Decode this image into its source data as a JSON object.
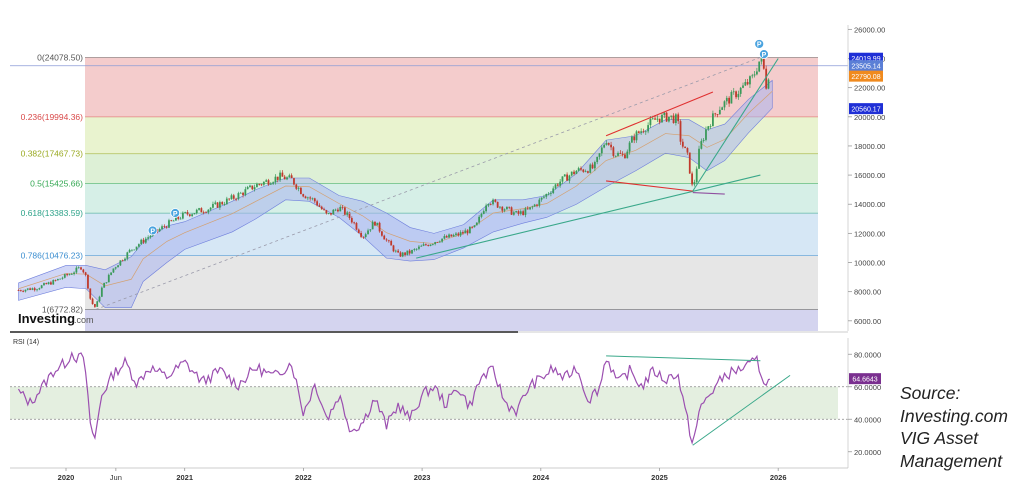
{
  "chart_data": [
    {
      "type": "candlestick",
      "title": "",
      "ylim": [
        5300,
        26300
      ],
      "price_ticks": [
        "26000.00",
        "24000.00",
        "22000.00",
        "20000.00",
        "18000.00",
        "16000.00",
        "14000.00",
        "12000.00",
        "10000.00",
        "8000.00",
        "6000.00"
      ],
      "x_labels": [
        "2020",
        "Jun",
        "2021",
        "2022",
        "2023",
        "2024",
        "2025",
        "2026"
      ],
      "price_path": [
        {
          "x": 2019.6,
          "y": 8100
        },
        {
          "x": 2019.75,
          "y": 8250
        },
        {
          "x": 2019.9,
          "y": 8700
        },
        {
          "x": 2020.05,
          "y": 9300
        },
        {
          "x": 2020.13,
          "y": 9700
        },
        {
          "x": 2020.17,
          "y": 9000
        },
        {
          "x": 2020.21,
          "y": 7300
        },
        {
          "x": 2020.25,
          "y": 6900
        },
        {
          "x": 2020.3,
          "y": 8200
        },
        {
          "x": 2020.4,
          "y": 9600
        },
        {
          "x": 2020.55,
          "y": 10900
        },
        {
          "x": 2020.7,
          "y": 11800
        },
        {
          "x": 2020.85,
          "y": 12600
        },
        {
          "x": 2021.0,
          "y": 13300
        },
        {
          "x": 2021.2,
          "y": 13700
        },
        {
          "x": 2021.4,
          "y": 14400
        },
        {
          "x": 2021.6,
          "y": 15300
        },
        {
          "x": 2021.8,
          "y": 15900
        },
        {
          "x": 2021.9,
          "y": 15700
        },
        {
          "x": 2022.0,
          "y": 14700
        },
        {
          "x": 2022.1,
          "y": 14200
        },
        {
          "x": 2022.2,
          "y": 13200
        },
        {
          "x": 2022.3,
          "y": 13800
        },
        {
          "x": 2022.4,
          "y": 13000
        },
        {
          "x": 2022.5,
          "y": 11800
        },
        {
          "x": 2022.6,
          "y": 12800
        },
        {
          "x": 2022.7,
          "y": 11500
        },
        {
          "x": 2022.8,
          "y": 10500
        },
        {
          "x": 2022.9,
          "y": 10700
        },
        {
          "x": 2023.0,
          "y": 11100
        },
        {
          "x": 2023.15,
          "y": 11600
        },
        {
          "x": 2023.3,
          "y": 11900
        },
        {
          "x": 2023.45,
          "y": 12400
        },
        {
          "x": 2023.55,
          "y": 14300
        },
        {
          "x": 2023.65,
          "y": 13900
        },
        {
          "x": 2023.8,
          "y": 13300
        },
        {
          "x": 2023.9,
          "y": 13600
        },
        {
          "x": 2024.0,
          "y": 14300
        },
        {
          "x": 2024.15,
          "y": 15500
        },
        {
          "x": 2024.3,
          "y": 16300
        },
        {
          "x": 2024.45,
          "y": 16500
        },
        {
          "x": 2024.55,
          "y": 18500
        },
        {
          "x": 2024.62,
          "y": 17500
        },
        {
          "x": 2024.7,
          "y": 17300
        },
        {
          "x": 2024.78,
          "y": 18600
        },
        {
          "x": 2024.88,
          "y": 19300
        },
        {
          "x": 2024.98,
          "y": 19900
        },
        {
          "x": 2025.08,
          "y": 20000
        },
        {
          "x": 2025.15,
          "y": 19800
        },
        {
          "x": 2025.18,
          "y": 18300
        },
        {
          "x": 2025.24,
          "y": 17200
        },
        {
          "x": 2025.28,
          "y": 14900
        },
        {
          "x": 2025.34,
          "y": 17900
        },
        {
          "x": 2025.4,
          "y": 19300
        },
        {
          "x": 2025.5,
          "y": 20600
        },
        {
          "x": 2025.6,
          "y": 21300
        },
        {
          "x": 2025.7,
          "y": 22000
        },
        {
          "x": 2025.78,
          "y": 22600
        },
        {
          "x": 2025.83,
          "y": 23600
        },
        {
          "x": 2025.85,
          "y": 24019
        },
        {
          "x": 2025.88,
          "y": 23200
        },
        {
          "x": 2025.9,
          "y": 22100
        },
        {
          "x": 2025.93,
          "y": 23500
        }
      ],
      "cloud": [
        {
          "x": 2019.6,
          "hi": 8600,
          "lo": 7400
        },
        {
          "x": 2020.0,
          "hi": 9800,
          "lo": 8300
        },
        {
          "x": 2020.17,
          "hi": 9800,
          "lo": 8200
        },
        {
          "x": 2020.33,
          "hi": 9500,
          "lo": 6900
        },
        {
          "x": 2020.55,
          "hi": 10400,
          "lo": 6900
        },
        {
          "x": 2020.65,
          "hi": 11400,
          "lo": 8700
        },
        {
          "x": 2020.85,
          "hi": 12500,
          "lo": 10000
        },
        {
          "x": 2021.0,
          "hi": 12800,
          "lo": 10900
        },
        {
          "x": 2021.4,
          "hi": 14200,
          "lo": 12100
        },
        {
          "x": 2021.6,
          "hi": 15000,
          "lo": 13000
        },
        {
          "x": 2021.85,
          "hi": 15800,
          "lo": 14300
        },
        {
          "x": 2022.05,
          "hi": 15800,
          "lo": 14200
        },
        {
          "x": 2022.3,
          "hi": 14600,
          "lo": 13100
        },
        {
          "x": 2022.5,
          "hi": 14200,
          "lo": 11800
        },
        {
          "x": 2022.7,
          "hi": 13400,
          "lo": 10300
        },
        {
          "x": 2022.9,
          "hi": 12400,
          "lo": 10100
        },
        {
          "x": 2023.1,
          "hi": 12000,
          "lo": 10200
        },
        {
          "x": 2023.35,
          "hi": 12600,
          "lo": 11000
        },
        {
          "x": 2023.6,
          "hi": 14300,
          "lo": 12100
        },
        {
          "x": 2023.85,
          "hi": 14300,
          "lo": 12700
        },
        {
          "x": 2024.05,
          "hi": 14600,
          "lo": 13100
        },
        {
          "x": 2024.3,
          "hi": 16100,
          "lo": 14000
        },
        {
          "x": 2024.55,
          "hi": 18400,
          "lo": 15200
        },
        {
          "x": 2024.8,
          "hi": 18700,
          "lo": 16300
        },
        {
          "x": 2025.05,
          "hi": 19800,
          "lo": 17500
        },
        {
          "x": 2025.25,
          "hi": 19800,
          "lo": 17200
        },
        {
          "x": 2025.4,
          "hi": 19100,
          "lo": 16300
        },
        {
          "x": 2025.55,
          "hi": 19500,
          "lo": 17000
        },
        {
          "x": 2025.75,
          "hi": 21200,
          "lo": 18900
        },
        {
          "x": 2025.95,
          "hi": 22500,
          "lo": 20600
        }
      ],
      "fib_levels": [
        {
          "label": "0(24078.50)",
          "value": 24078.5,
          "color": "#555555"
        },
        {
          "label": "0.236(19994.36)",
          "value": 19994.36,
          "color": "#d94a4a"
        },
        {
          "label": "0.382(17467.73)",
          "value": 17467.73,
          "color": "#9aaa22"
        },
        {
          "label": "0.5(15425.66)",
          "value": 15425.66,
          "color": "#34a853"
        },
        {
          "label": "0.618(13383.59)",
          "value": 13383.59,
          "color": "#2ea38a"
        },
        {
          "label": "0.786(10476.23)",
          "value": 10476.23,
          "color": "#3b8ed0"
        },
        {
          "label": "1(6772.82)",
          "value": 6772.82,
          "color": "#555555"
        }
      ],
      "fib_bands": [
        {
          "from": 24078.5,
          "to": 19994.36,
          "color": "#f4cccc"
        },
        {
          "from": 19994.36,
          "to": 17467.73,
          "color": "#e9f3cf"
        },
        {
          "from": 17467.73,
          "to": 15425.66,
          "color": "#ddf0d6"
        },
        {
          "from": 15425.66,
          "to": 13383.59,
          "color": "#d6efe7"
        },
        {
          "from": 13383.59,
          "to": 10476.23,
          "color": "#d6e7f5"
        },
        {
          "from": 10476.23,
          "to": 6772.82,
          "color": "#e6e6e6"
        },
        {
          "from": 6772.82,
          "to": 5300,
          "color": "#d4d4ef"
        }
      ],
      "price_labels": [
        {
          "text": "24019.99",
          "value": 24019.99,
          "color": "#1f2fd6"
        },
        {
          "text": "23505.14",
          "value": 23505.14,
          "color": "#5b7fd6"
        },
        {
          "text": "22790.08",
          "value": 22790.08,
          "color": "#f08a1e"
        },
        {
          "text": "20560.17",
          "value": 20560.17,
          "color": "#1f2fd6"
        }
      ],
      "trendlines": [
        {
          "x1": 2020.25,
          "y1": 6772.82,
          "x2": 2025.85,
          "y2": 24078.5,
          "color": "#9a9aaa",
          "dashed": true
        },
        {
          "x1": 2022.95,
          "y1": 10300,
          "x2": 2025.85,
          "y2": 16000,
          "color": "#3aa88a",
          "dashed": false
        },
        {
          "x1": 2025.28,
          "y1": 14900,
          "x2": 2026.0,
          "y2": 24000,
          "color": "#3aa88a",
          "dashed": false
        },
        {
          "x1": 2024.55,
          "y1": 18700,
          "x2": 2025.45,
          "y2": 21700,
          "color": "#e03030",
          "dashed": false
        },
        {
          "x1": 2024.55,
          "y1": 15600,
          "x2": 2025.28,
          "y2": 14900,
          "color": "#e03030",
          "dashed": false
        },
        {
          "x1": 2025.28,
          "y1": 14800,
          "x2": 2025.55,
          "y2": 14700,
          "color": "#9050a0",
          "dashed": false
        }
      ],
      "markers": [
        {
          "x": 2020.73,
          "y": 12200,
          "label": "P"
        },
        {
          "x": 2020.92,
          "y": 13400,
          "label": "P"
        },
        {
          "x": 2025.84,
          "y": 25000,
          "label": "P"
        },
        {
          "x": 2025.88,
          "y": 24300,
          "label": "P"
        }
      ],
      "watermark": "Investing.com"
    },
    {
      "type": "line",
      "title": "RSI (14)",
      "ylim": [
        10,
        90
      ],
      "yticks": [
        "80.0000",
        "60.0000",
        "40.0000",
        "20.0000"
      ],
      "band": [
        40,
        60
      ],
      "last_value": "64.6643",
      "values": [
        {
          "x": 2019.6,
          "y": 57
        },
        {
          "x": 2019.7,
          "y": 50
        },
        {
          "x": 2019.8,
          "y": 60
        },
        {
          "x": 2019.9,
          "y": 70
        },
        {
          "x": 2020.0,
          "y": 75
        },
        {
          "x": 2020.05,
          "y": 81
        },
        {
          "x": 2020.1,
          "y": 77
        },
        {
          "x": 2020.15,
          "y": 79
        },
        {
          "x": 2020.2,
          "y": 40
        },
        {
          "x": 2020.24,
          "y": 26
        },
        {
          "x": 2020.3,
          "y": 55
        },
        {
          "x": 2020.4,
          "y": 68
        },
        {
          "x": 2020.5,
          "y": 75
        },
        {
          "x": 2020.6,
          "y": 62
        },
        {
          "x": 2020.7,
          "y": 72
        },
        {
          "x": 2020.85,
          "y": 66
        },
        {
          "x": 2021.0,
          "y": 75
        },
        {
          "x": 2021.15,
          "y": 63
        },
        {
          "x": 2021.3,
          "y": 70
        },
        {
          "x": 2021.45,
          "y": 61
        },
        {
          "x": 2021.6,
          "y": 72
        },
        {
          "x": 2021.75,
          "y": 66
        },
        {
          "x": 2021.9,
          "y": 75
        },
        {
          "x": 2022.0,
          "y": 44
        },
        {
          "x": 2022.1,
          "y": 62
        },
        {
          "x": 2022.2,
          "y": 40
        },
        {
          "x": 2022.3,
          "y": 55
        },
        {
          "x": 2022.4,
          "y": 33
        },
        {
          "x": 2022.5,
          "y": 38
        },
        {
          "x": 2022.6,
          "y": 53
        },
        {
          "x": 2022.7,
          "y": 36
        },
        {
          "x": 2022.8,
          "y": 49
        },
        {
          "x": 2022.9,
          "y": 40
        },
        {
          "x": 2023.0,
          "y": 55
        },
        {
          "x": 2023.1,
          "y": 60
        },
        {
          "x": 2023.2,
          "y": 49
        },
        {
          "x": 2023.3,
          "y": 60
        },
        {
          "x": 2023.4,
          "y": 48
        },
        {
          "x": 2023.5,
          "y": 66
        },
        {
          "x": 2023.6,
          "y": 70
        },
        {
          "x": 2023.7,
          "y": 50
        },
        {
          "x": 2023.8,
          "y": 45
        },
        {
          "x": 2023.9,
          "y": 60
        },
        {
          "x": 2024.0,
          "y": 65
        },
        {
          "x": 2024.1,
          "y": 71
        },
        {
          "x": 2024.2,
          "y": 65
        },
        {
          "x": 2024.3,
          "y": 72
        },
        {
          "x": 2024.4,
          "y": 52
        },
        {
          "x": 2024.5,
          "y": 60
        },
        {
          "x": 2024.55,
          "y": 79
        },
        {
          "x": 2024.65,
          "y": 62
        },
        {
          "x": 2024.75,
          "y": 70
        },
        {
          "x": 2024.85,
          "y": 60
        },
        {
          "x": 2024.95,
          "y": 70
        },
        {
          "x": 2025.05,
          "y": 64
        },
        {
          "x": 2025.15,
          "y": 69
        },
        {
          "x": 2025.22,
          "y": 44
        },
        {
          "x": 2025.28,
          "y": 25
        },
        {
          "x": 2025.35,
          "y": 48
        },
        {
          "x": 2025.45,
          "y": 58
        },
        {
          "x": 2025.55,
          "y": 67
        },
        {
          "x": 2025.65,
          "y": 70
        },
        {
          "x": 2025.75,
          "y": 73
        },
        {
          "x": 2025.82,
          "y": 76
        },
        {
          "x": 2025.86,
          "y": 68
        },
        {
          "x": 2025.9,
          "y": 60
        },
        {
          "x": 2025.93,
          "y": 64.66
        }
      ],
      "trendlines": [
        {
          "x1": 2024.55,
          "y1": 79,
          "x2": 2025.85,
          "y2": 76,
          "color": "#3aa88a"
        },
        {
          "x1": 2025.28,
          "y1": 24,
          "x2": 2026.1,
          "y2": 67,
          "color": "#3aa88a"
        }
      ]
    }
  ],
  "source_note": {
    "line1": "Source:",
    "line2": "Investing.com",
    "line3": "VIG Asset",
    "line4": "Management"
  },
  "colors": {
    "candle_up": "#3a9a5a",
    "candle_down": "#c0392b",
    "cloud": "#aab4ee",
    "rsi_line": "#9b4fb0",
    "marker": "#4aa3df"
  }
}
